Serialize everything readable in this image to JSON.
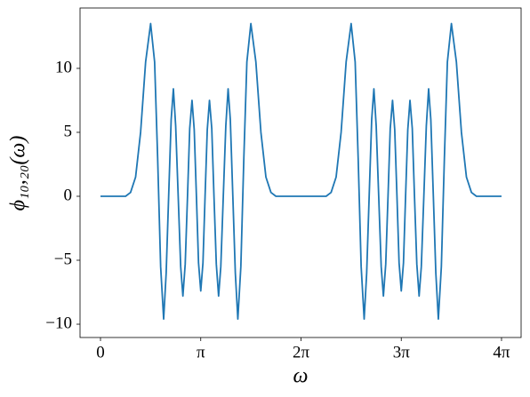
{
  "chart_data": {
    "type": "line",
    "xlabel": "ω",
    "ylabel": "ϕ₁₀,₂₀(ω)",
    "x": [
      0,
      0.785,
      0.942,
      1.1,
      1.257,
      1.414,
      1.571,
      1.696,
      1.791,
      1.885,
      1.979,
      2.058,
      2.136,
      2.215,
      2.284,
      2.356,
      2.435,
      2.513,
      2.582,
      2.655,
      2.727,
      2.796,
      2.868,
      2.937,
      3.006,
      3.072,
      3.142,
      3.211,
      3.277,
      3.346,
      3.415,
      3.487,
      3.556,
      3.629,
      3.701,
      3.77,
      3.848,
      3.927,
      3.999,
      4.068,
      4.147,
      4.225,
      4.304,
      4.398,
      4.492,
      4.587,
      4.712,
      4.869,
      5.027,
      5.184,
      5.341,
      5.498,
      6.283,
      7.069,
      7.226,
      7.383,
      7.54,
      7.697,
      7.854,
      7.98,
      8.074,
      8.168,
      8.262,
      8.341,
      8.419,
      8.498,
      8.567,
      8.639,
      8.718,
      8.796,
      8.865,
      8.938,
      9.01,
      9.079,
      9.151,
      9.22,
      9.29,
      9.356,
      9.425,
      9.494,
      9.56,
      9.629,
      9.698,
      9.77,
      9.839,
      9.912,
      9.984,
      10.053,
      10.132,
      10.21,
      10.282,
      10.351,
      10.43,
      10.508,
      10.587,
      10.681,
      10.776,
      10.87,
      10.996,
      11.152,
      11.31,
      11.467,
      11.624,
      11.781,
      12.566
    ],
    "series": [
      {
        "color": "#1f77b4",
        "values": [
          0,
          0,
          0.3,
          1.5,
          5,
          10.5,
          13.5,
          10.5,
          3,
          -5.5,
          -9.6,
          -6,
          0,
          6,
          8.4,
          5.5,
          0,
          -5.5,
          -7.8,
          -5.3,
          0,
          5.3,
          7.5,
          5.2,
          0,
          -5.2,
          -7.4,
          -5.2,
          0,
          5.2,
          7.5,
          5.3,
          0,
          -5.3,
          -7.8,
          -5.5,
          0,
          5.5,
          8.4,
          6,
          0,
          -6,
          -9.6,
          -5.5,
          3,
          10.5,
          13.5,
          10.5,
          5,
          1.5,
          0.3,
          0,
          0,
          0,
          0.3,
          1.5,
          5,
          10.5,
          13.5,
          10.5,
          3,
          -5.5,
          -9.6,
          -6,
          0,
          6,
          8.4,
          5.5,
          0,
          -5.5,
          -7.8,
          -5.3,
          0,
          5.3,
          7.5,
          5.2,
          0,
          -5.2,
          -7.4,
          -5.2,
          0,
          5.2,
          7.5,
          5.3,
          0,
          -5.3,
          -7.8,
          -5.5,
          0,
          5.5,
          8.4,
          6,
          0,
          -6,
          -9.6,
          -5.5,
          3,
          10.5,
          13.5,
          10.5,
          5,
          1.5,
          0.3,
          0,
          0
        ]
      }
    ],
    "xlim": [
      -0.641,
      13.18
    ],
    "ylim": [
      -11.04,
      14.72
    ],
    "xticks": [
      0,
      {
        "value": 3.14159,
        "label": "π"
      },
      {
        "value": 6.28319,
        "label": "2π"
      },
      {
        "value": 9.42478,
        "label": "3π"
      },
      {
        "value": 12.56637,
        "label": "4π"
      }
    ],
    "yticks": [
      {
        "value": -10,
        "label": "−10"
      },
      {
        "value": -5,
        "label": "−5"
      },
      0,
      5,
      10
    ],
    "grid": false
  }
}
